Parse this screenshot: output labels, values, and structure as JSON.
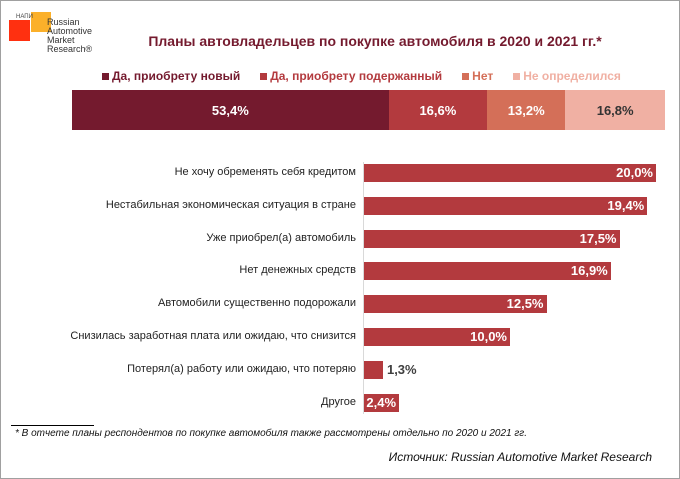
{
  "logo": {
    "small": "НАПИ",
    "text": "Russian Automotive Market Research®"
  },
  "chart_data": [
    {
      "type": "bar",
      "stacked": true,
      "orientation": "horizontal",
      "title": "Планы автовладельцев по покупке автомобиля в 2020 и 2021 гг.*",
      "legend_position": "top",
      "series": [
        {
          "name": "Да, приобрету новый",
          "value": 53.4,
          "label": "53,4%",
          "color": "#741a2e",
          "label_color": "#ffffff"
        },
        {
          "name": "Да, приобрету подержанный",
          "value": 16.6,
          "label": "16,6%",
          "color": "#b33a3e",
          "label_color": "#ffffff"
        },
        {
          "name": "Нет",
          "value": 13.2,
          "label": "13,2%",
          "color": "#d46f58",
          "label_color": "#ffffff"
        },
        {
          "name": "Не определился",
          "value": 16.8,
          "label": "16,8%",
          "color": "#f0b0a3",
          "label_color": "#333333"
        }
      ]
    },
    {
      "type": "bar",
      "orientation": "horizontal",
      "color": "#b33a3e",
      "xlim": [
        0,
        20
      ],
      "categories": [
        "Не хочу обременять себя кредитом",
        "Нестабильная экономическая ситуация в стране",
        "Уже приобрел(а) автомобиль",
        "Нет денежных средств",
        "Автомобили существенно подорожали",
        "Снизилась заработная плата или ожидаю, что снизится",
        "Потерял(а) работу или ожидаю, что потеряю",
        "Другое"
      ],
      "values": [
        20.0,
        19.4,
        17.5,
        16.9,
        12.5,
        10.0,
        1.3,
        2.4
      ],
      "labels": [
        "20,0%",
        "19,4%",
        "17,5%",
        "16,9%",
        "12,5%",
        "10,0%",
        "1,3%",
        "2,4%"
      ]
    }
  ],
  "footnote": "* В отчете планы респондентов по покупке автомобиля также рассмотрены отдельно по 2020 и 2021 гг.",
  "source": "Источник: Russian Automotive Market Research"
}
